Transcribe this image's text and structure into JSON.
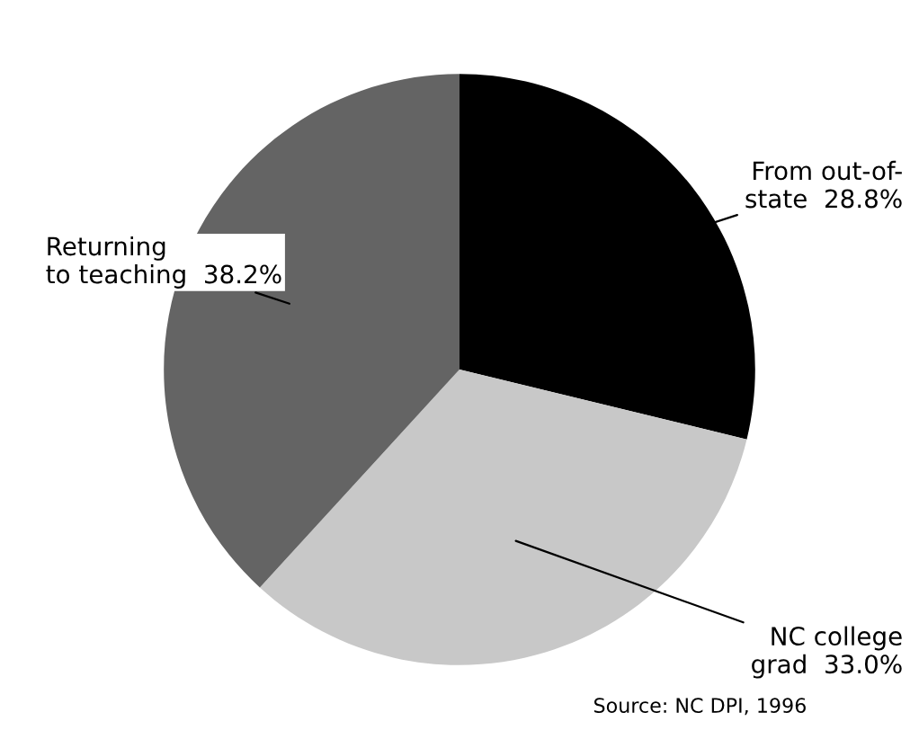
{
  "chart_data": {
    "type": "pie",
    "categories": [
      "From out-of-\nstate",
      "NC college\ngrad",
      "Returning\nto teaching"
    ],
    "values": [
      28.8,
      33.0,
      38.2
    ],
    "colors": [
      "#000000",
      "#c8c8c8",
      "#646464"
    ],
    "value_labels": [
      "28.8%",
      "33.0%",
      "38.2%"
    ],
    "annotations": [
      "Source: NC DPI, 1996"
    ]
  }
}
